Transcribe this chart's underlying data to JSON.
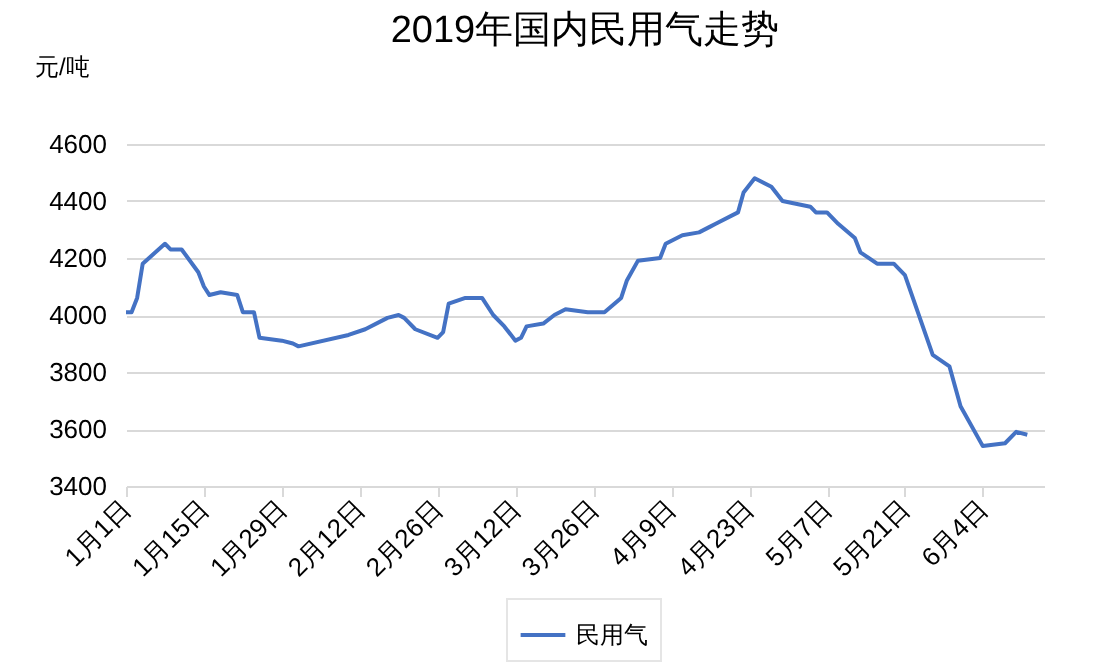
{
  "chart_data": {
    "type": "line",
    "title": "2019年国内民用气走势",
    "ylabel": "元/吨",
    "x": [
      "2019-01-01",
      "2019-01-02",
      "2019-01-03",
      "2019-01-04",
      "2019-01-08",
      "2019-01-09",
      "2019-01-11",
      "2019-01-14",
      "2019-01-15",
      "2019-01-16",
      "2019-01-18",
      "2019-01-21",
      "2019-01-22",
      "2019-01-24",
      "2019-01-25",
      "2019-01-29",
      "2019-01-31",
      "2019-02-01",
      "2019-02-10",
      "2019-02-13",
      "2019-02-17",
      "2019-02-19",
      "2019-02-20",
      "2019-02-22",
      "2019-02-26",
      "2019-02-27",
      "2019-02-28",
      "2019-03-03",
      "2019-03-06",
      "2019-03-08",
      "2019-03-10",
      "2019-03-12",
      "2019-03-13",
      "2019-03-14",
      "2019-03-17",
      "2019-03-19",
      "2019-03-21",
      "2019-03-25",
      "2019-03-28",
      "2019-03-31",
      "2019-04-01",
      "2019-04-03",
      "2019-04-07",
      "2019-04-08",
      "2019-04-11",
      "2019-04-14",
      "2019-04-16",
      "2019-04-17",
      "2019-04-21",
      "2019-04-22",
      "2019-04-24",
      "2019-04-27",
      "2019-04-29",
      "2019-05-04",
      "2019-05-05",
      "2019-05-07",
      "2019-05-09",
      "2019-05-12",
      "2019-05-13",
      "2019-05-16",
      "2019-05-19",
      "2019-05-21",
      "2019-05-26",
      "2019-05-29",
      "2019-05-31",
      "2019-06-04",
      "2019-06-08",
      "2019-06-10",
      "2019-06-12"
    ],
    "series": [
      {
        "name": "民用气",
        "color": "#4472c4",
        "values": [
          4010,
          4010,
          4060,
          4180,
          4250,
          4230,
          4230,
          4150,
          4100,
          4070,
          4080,
          4070,
          4010,
          4010,
          3920,
          3910,
          3900,
          3890,
          3930,
          3950,
          3990,
          4000,
          3990,
          3950,
          3920,
          3940,
          4040,
          4060,
          4060,
          4000,
          3960,
          3910,
          3920,
          3960,
          3970,
          4000,
          4020,
          4010,
          4010,
          4060,
          4120,
          4190,
          4200,
          4250,
          4280,
          4290,
          4310,
          4320,
          4360,
          4430,
          4480,
          4450,
          4400,
          4380,
          4360,
          4360,
          4320,
          4270,
          4220,
          4180,
          4180,
          4140,
          3860,
          3820,
          3680,
          3540,
          3550,
          3590,
          3580
        ]
      }
    ],
    "xlim": [
      "2019-01-01",
      "2019-06-15"
    ],
    "xticks": [
      {
        "value": "2019-01-01",
        "label": "1月1日"
      },
      {
        "value": "2019-01-15",
        "label": "1月15日"
      },
      {
        "value": "2019-01-29",
        "label": "1月29日"
      },
      {
        "value": "2019-02-12",
        "label": "2月12日"
      },
      {
        "value": "2019-02-26",
        "label": "2月26日"
      },
      {
        "value": "2019-03-12",
        "label": "3月12日"
      },
      {
        "value": "2019-03-26",
        "label": "3月26日"
      },
      {
        "value": "2019-04-09",
        "label": "4月9日"
      },
      {
        "value": "2019-04-23",
        "label": "4月23日"
      },
      {
        "value": "2019-05-07",
        "label": "5月7日"
      },
      {
        "value": "2019-05-21",
        "label": "5月21日"
      },
      {
        "value": "2019-06-04",
        "label": "6月4日"
      }
    ],
    "ylim": [
      3400,
      4600
    ],
    "yticks": [
      3400,
      3600,
      3800,
      4000,
      4200,
      4400,
      4600
    ],
    "grid": "y",
    "legend": "bottom",
    "marker": "none",
    "line_style": "solid"
  }
}
